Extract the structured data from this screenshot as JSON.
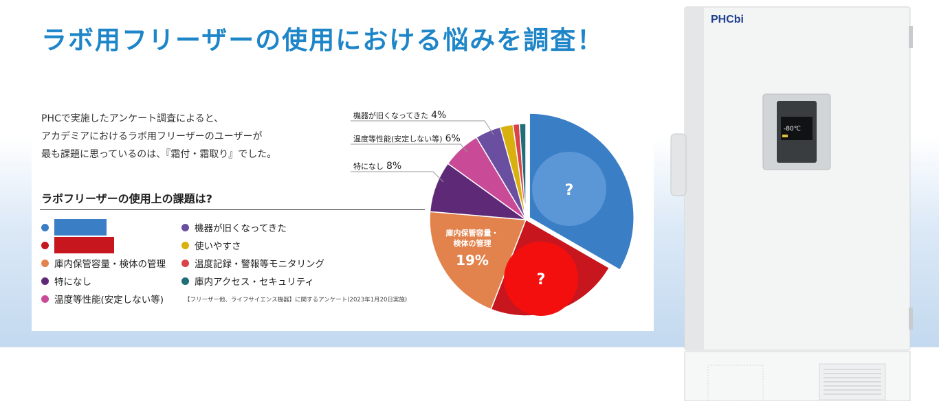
{
  "page": {
    "title": "ラボ用フリーザーの使用における悩みを調査！",
    "intro": [
      "PHCで実施したアンケート調査によると、",
      "アカデミアにおけるラボ用フリーザーのユーザーが",
      "最も課題に思っているのは、『霜付・霜取り』でした。"
    ],
    "subtitle": "ラボフリーザーの使用上の課題は?",
    "source_note": "【フリーザー他、ライフサイエンス機器】に関するアンケート(2023年1月20日実施)"
  },
  "legend": {
    "col1": [
      {
        "label": "",
        "color": "#3a7fc6",
        "hidden": true
      },
      {
        "label": "",
        "color": "#c8161e",
        "hidden": true
      },
      {
        "label": "庫内保管容量・検体の管理",
        "color": "#e2834d"
      },
      {
        "label": "特になし",
        "color": "#5e2a78"
      },
      {
        "label": "温度等性能(安定しない等)",
        "color": "#c94a97"
      }
    ],
    "col2": [
      {
        "label": "機器が旧くなってきた",
        "color": "#6a4fa0"
      },
      {
        "label": "使いやすさ",
        "color": "#d8b10e"
      },
      {
        "label": "温度記録・警報等モニタリング",
        "color": "#d9444b"
      },
      {
        "label": "庫内アクセス・セキュリティ",
        "color": "#1f6e78"
      }
    ]
  },
  "callouts": [
    {
      "label": "機器が旧くなってきた",
      "pct": "4%"
    },
    {
      "label": "温度等性能(安定しない等)",
      "pct": "6%"
    },
    {
      "label": "特になし",
      "pct": "8%"
    }
  ],
  "inner_label": {
    "line1": "庫内保管容量・",
    "line2": "検体の管理",
    "pct": "19%"
  },
  "question_mark": "?",
  "brand": "PHCbi",
  "display_temp": "-80℃",
  "chart_data": {
    "type": "pie",
    "slices": [
      {
        "label": "?",
        "value": 31,
        "color": "#3a7fc6",
        "exploded": true
      },
      {
        "label": "?",
        "value": 21,
        "color": "#c8161e"
      },
      {
        "label": "庫内保管容量・検体の管理",
        "value": 19,
        "color": "#e2834d"
      },
      {
        "label": "特になし",
        "value": 8,
        "color": "#5e2a78"
      },
      {
        "label": "温度等性能(安定しない等)",
        "value": 6,
        "color": "#c94a97"
      },
      {
        "label": "機器が旧くなってきた",
        "value": 4,
        "color": "#6a4fa0"
      },
      {
        "label": "使いやすさ",
        "value": 2,
        "color": "#d8b10e"
      },
      {
        "label": "温度記録・警報等モニタリング",
        "value": 1,
        "color": "#d9444b"
      },
      {
        "label": "庫内アクセス・セキュリティ",
        "value": 1,
        "color": "#1f6e78"
      }
    ]
  }
}
